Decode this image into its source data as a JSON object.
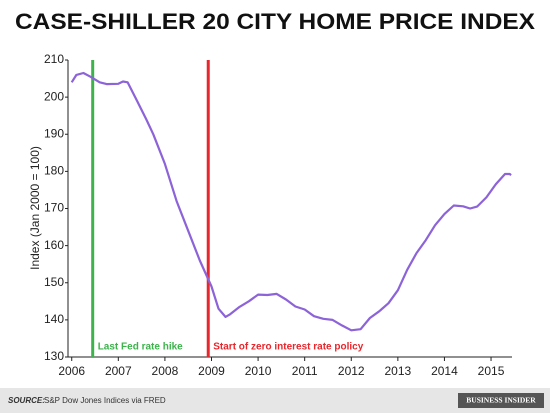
{
  "chart_data": {
    "type": "line",
    "title": "CASE-SHILLER 20 CITY HOME PRICE INDEX",
    "y_label": "Index (Jan 2000 = 100)",
    "x": [
      2006.0,
      2006.1,
      2006.25,
      2006.4,
      2006.6,
      2006.75,
      2007.0,
      2007.1,
      2007.2,
      2007.4,
      2007.6,
      2007.75,
      2008.0,
      2008.25,
      2008.5,
      2008.75,
      2009.0,
      2009.15,
      2009.3,
      2009.4,
      2009.6,
      2009.8,
      2010.0,
      2010.2,
      2010.4,
      2010.6,
      2010.8,
      2011.0,
      2011.2,
      2011.4,
      2011.6,
      2011.8,
      2012.0,
      2012.2,
      2012.4,
      2012.6,
      2012.8,
      2013.0,
      2013.2,
      2013.4,
      2013.6,
      2013.8,
      2014.0,
      2014.2,
      2014.4,
      2014.55,
      2014.7,
      2014.9,
      2015.1,
      2015.3,
      2015.4,
      2015.43
    ],
    "values": [
      204,
      206,
      206.5,
      205.5,
      204,
      203.5,
      203.6,
      204.2,
      204,
      199,
      194,
      190,
      182,
      172,
      164,
      156,
      149,
      143,
      140.8,
      141.5,
      143.5,
      145,
      146.8,
      146.7,
      147,
      145.5,
      143.6,
      142.8,
      141,
      140.3,
      140,
      138.5,
      137.2,
      137.5,
      140.5,
      142.3,
      144.5,
      148,
      153.5,
      158,
      161.5,
      165.5,
      168.5,
      170.8,
      170.6,
      170,
      170.5,
      173,
      176.5,
      179.3,
      179.3,
      179
    ],
    "color": "#8c63d8",
    "xlim": [
      2005.92,
      2015.45
    ],
    "xticks": [
      2006,
      2007,
      2008,
      2009,
      2010,
      2011,
      2012,
      2013,
      2014,
      2015
    ],
    "ylim": [
      130,
      210
    ],
    "yticks": [
      130,
      140,
      150,
      160,
      170,
      180,
      190,
      200,
      210
    ],
    "annotations": [
      {
        "x": 2006.45,
        "label": "Last Fed rate hike",
        "color": "#3cb44b"
      },
      {
        "x": 2008.93,
        "label": "Start of zero interest rate policy",
        "color": "#e8262c"
      }
    ],
    "source_label": "SOURCE:",
    "source": "S&P Dow Jones Indices via FRED",
    "brand": "BUSINESS INSIDER"
  }
}
